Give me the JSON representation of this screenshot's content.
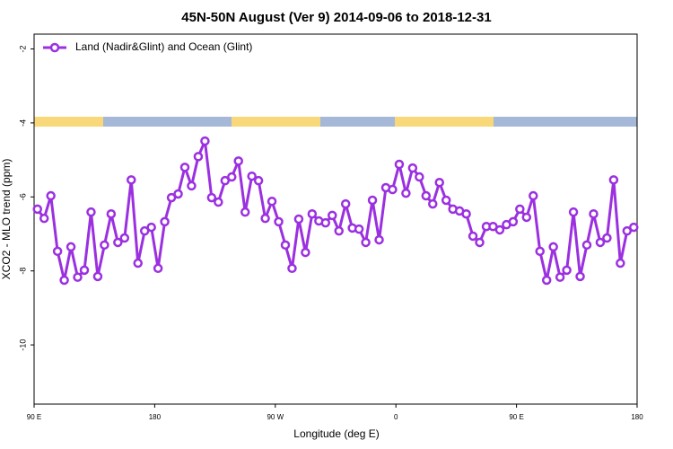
{
  "chart_data": {
    "type": "line",
    "title": "45N-50N August (Ver 9)   2014-09-06 to 2018-12-31",
    "x_label": "Longitude (deg E)",
    "y_label": "XCO2 - MLO trend (ppm)",
    "x": [
      92.5,
      97.5,
      102.5,
      107.5,
      112.5,
      117.5,
      122.5,
      127.5,
      132.5,
      137.5,
      142.5,
      147.5,
      152.5,
      157.5,
      162.5,
      167.5,
      172.5,
      177.5,
      182.5,
      187.5,
      192.5,
      197.5,
      202.5,
      207.5,
      212.5,
      217.5,
      222.5,
      227.5,
      232.5,
      237.5,
      242.5,
      247.5,
      252.5,
      257.5,
      262.5,
      267.5,
      272.5,
      277.5,
      282.5,
      287.5,
      292.5,
      297.5,
      302.5,
      307.5,
      312.5,
      317.5,
      322.5,
      327.5,
      332.5,
      337.5,
      342.5,
      347.5,
      352.5,
      357.5,
      362.5,
      367.5,
      372.5,
      377.5,
      382.5,
      387.5,
      392.5,
      397.5,
      402.5,
      407.5,
      412.5,
      417.5,
      422.5,
      427.5,
      432.5,
      437.5,
      442.5,
      447.5,
      452.5,
      457.5,
      462.5,
      467.5,
      472.5,
      477.5,
      482.5,
      487.5,
      492.5,
      497.5,
      502.5,
      507.5,
      512.5,
      517.5,
      522.5,
      527.5,
      532.5,
      537.5
    ],
    "series": [
      {
        "name": "Land (Nadir&Glint) and Ocean (Glint)",
        "color": "#9b30e0",
        "values": [
          -6.33,
          -6.58,
          -5.97,
          -7.47,
          -8.25,
          -7.35,
          -8.17,
          -7.98,
          -6.41,
          -8.15,
          -7.3,
          -6.46,
          -7.23,
          -7.11,
          -5.54,
          -7.79,
          -6.92,
          -6.82,
          -7.93,
          -6.67,
          -6.02,
          -5.92,
          -5.2,
          -5.7,
          -4.91,
          -4.49,
          -6.02,
          -6.14,
          -5.56,
          -5.46,
          -5.03,
          -6.41,
          -5.44,
          -5.56,
          -6.58,
          -6.12,
          -6.67,
          -7.3,
          -7.93,
          -6.6,
          -7.5,
          -6.46,
          -6.65,
          -6.7,
          -6.5,
          -6.92,
          -6.19,
          -6.84,
          -6.87,
          -7.23,
          -6.09,
          -7.16,
          -5.75,
          -5.8,
          -5.12,
          -5.9,
          -5.22,
          -5.46,
          -5.97,
          -6.19,
          -5.61,
          -6.09,
          -6.33,
          -6.38,
          -6.46,
          -7.06,
          -7.23,
          -6.8,
          -6.8,
          -6.89,
          -6.75,
          -6.67,
          -6.33,
          -6.55,
          -5.97,
          -7.47,
          -8.25,
          -7.35,
          -8.17,
          -7.98,
          -6.41,
          -8.15,
          -7.3,
          -6.46,
          -7.23,
          -7.11,
          -5.54,
          -7.79,
          -6.92,
          -6.82
        ]
      }
    ],
    "xlim": [
      90,
      540
    ],
    "xticks": [
      {
        "value": 90,
        "label": "90 E"
      },
      180,
      {
        "value": 270,
        "label": "90 W"
      },
      {
        "value": 360,
        "label": "0"
      },
      {
        "value": 450,
        "label": "90 E"
      },
      {
        "value": 540,
        "label": "180"
      }
    ],
    "ylim": [
      -11.6,
      -1.6
    ],
    "yticks": [
      -2,
      -4,
      -6,
      -8,
      -10
    ],
    "legend": "top-left"
  }
}
